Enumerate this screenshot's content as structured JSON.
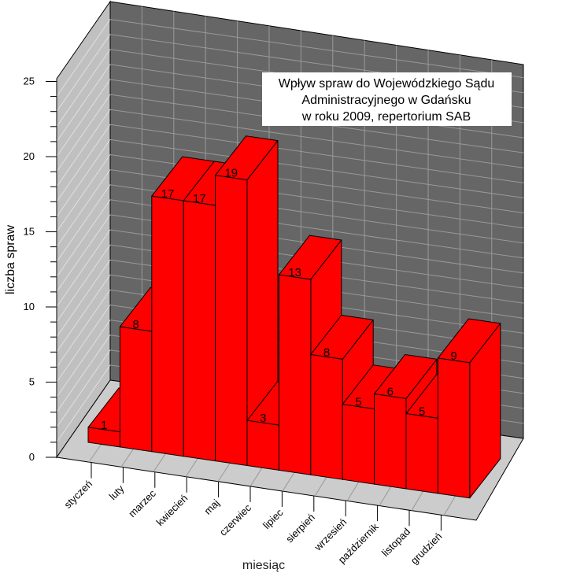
{
  "chart_data": {
    "type": "bar",
    "title": [
      "Wpływ spraw do Wojewódzkiego Sądu",
      "Administracyjnego w Gdańsku",
      "w roku 2009, repertorium SAB"
    ],
    "xlabel": "miesiąc",
    "ylabel": "liczba spraw",
    "ylim": [
      0,
      25
    ],
    "yticks": [
      "0",
      "5",
      "10",
      "15",
      "20",
      "25"
    ],
    "categories": [
      "styczeń",
      "luty",
      "marzec",
      "kwiecień",
      "maj",
      "czerwiec",
      "lipiec",
      "sierpień",
      "wrzesień",
      "październik",
      "listopad",
      "grudzień"
    ],
    "values": [
      1,
      8,
      17,
      17,
      19,
      3,
      13,
      8,
      5,
      6,
      5,
      9
    ],
    "data_labels": [
      "1",
      "8",
      "17",
      "17",
      "19",
      "3",
      "13",
      "8",
      "5",
      "6",
      "5",
      "9"
    ],
    "bar_color": "#ff0000",
    "grid": true,
    "projection": "3d"
  }
}
